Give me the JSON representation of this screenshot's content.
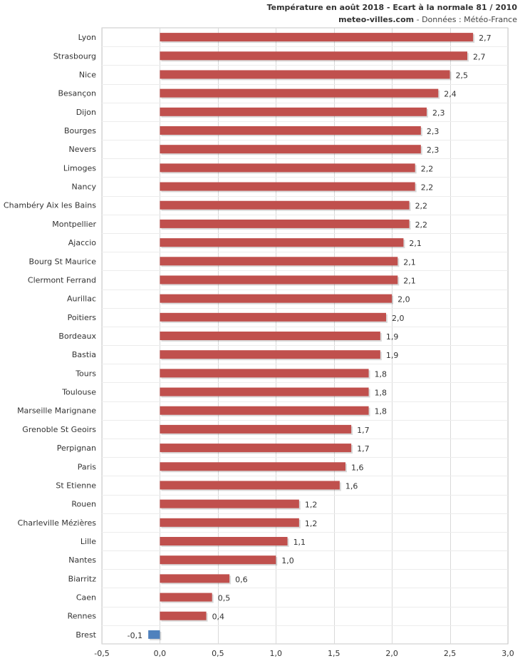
{
  "header": {
    "title": "Température en août 2018 - Ecart à la normale 81 / 2010",
    "site": "meteo-villes.com",
    "source": " - Données : Météo-France"
  },
  "colors": {
    "positive": "#c0504d",
    "negative": "#4f81bd",
    "grid": "#d9d9d9"
  },
  "chart_data": {
    "type": "bar",
    "orientation": "horizontal",
    "title": "Température en août 2018 - Ecart à la normale 81 / 2010",
    "subtitle": "meteo-villes.com - Données : Météo-France",
    "categories": [
      "Lyon",
      "Strasbourg",
      "Nice",
      "Besançon",
      "Dijon",
      "Bourges",
      "Nevers",
      "Limoges",
      "Nancy",
      "Chambéry Aix les Bains",
      "Montpellier",
      "Ajaccio",
      "Bourg St Maurice",
      "Clermont Ferrand",
      "Aurillac",
      "Poitiers",
      "Bordeaux",
      "Bastia",
      "Tours",
      "Toulouse",
      "Marseille Marignane",
      "Grenoble St Geoirs",
      "Perpignan",
      "Paris",
      "St Etienne",
      "Rouen",
      "Charleville Mézières",
      "Lille",
      "Nantes",
      "Biarritz",
      "Caen",
      "Rennes",
      "Brest"
    ],
    "values": [
      2.7,
      2.65,
      2.5,
      2.4,
      2.3,
      2.25,
      2.25,
      2.2,
      2.2,
      2.15,
      2.15,
      2.1,
      2.05,
      2.05,
      2.0,
      1.95,
      1.9,
      1.9,
      1.8,
      1.8,
      1.8,
      1.65,
      1.65,
      1.6,
      1.55,
      1.2,
      1.2,
      1.1,
      1.0,
      0.6,
      0.45,
      0.4,
      -0.1
    ],
    "value_labels": [
      "2,7",
      "2,7",
      "2,5",
      "2,4",
      "2,3",
      "2,3",
      "2,3",
      "2,2",
      "2,2",
      "2,2",
      "2,2",
      "2,1",
      "2,1",
      "2,1",
      "2,0",
      "2,0",
      "1,9",
      "1,9",
      "1,8",
      "1,8",
      "1,8",
      "1,7",
      "1,7",
      "1,6",
      "1,6",
      "1,2",
      "1,2",
      "1,1",
      "1,0",
      "0,6",
      "0,5",
      "0,4",
      "-0,1"
    ],
    "xlim": [
      -0.5,
      3.0
    ],
    "xticks": [
      -0.5,
      0.0,
      0.5,
      1.0,
      1.5,
      2.0,
      2.5,
      3.0
    ],
    "xtick_labels": [
      "-0,5",
      "0,0",
      "0,5",
      "1,0",
      "1,5",
      "2,0",
      "2,5",
      "3,0"
    ],
    "xlabel": "",
    "ylabel": "",
    "grid": true
  }
}
